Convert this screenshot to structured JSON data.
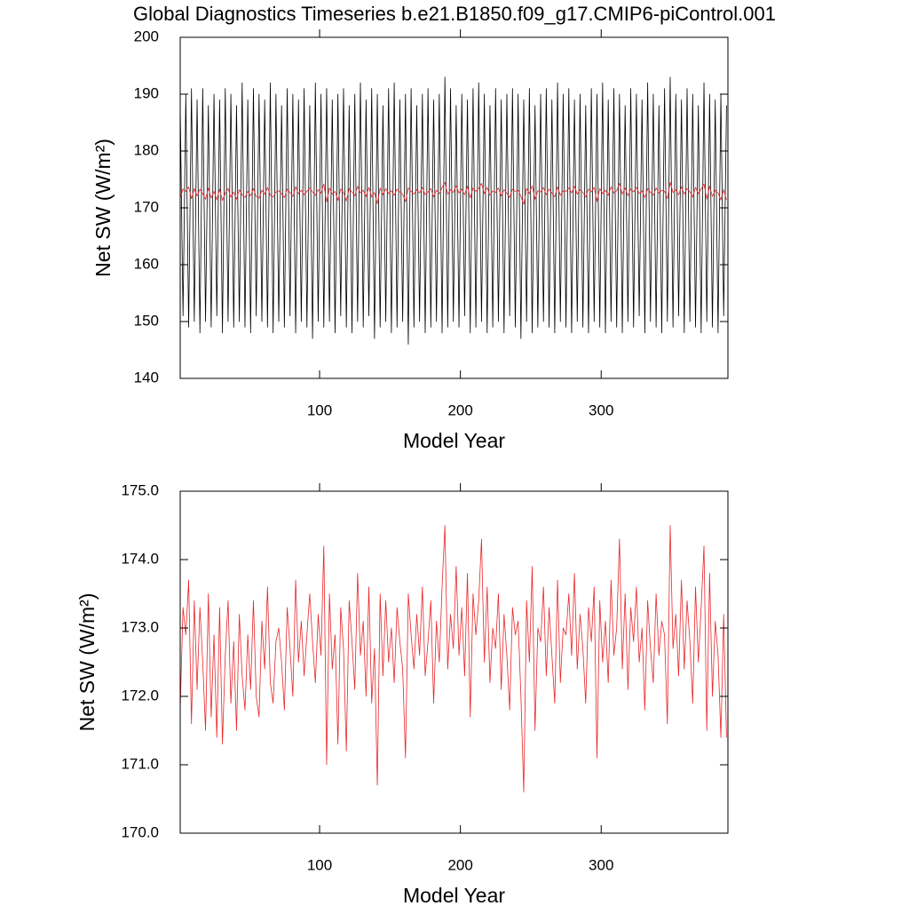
{
  "chart_data": [
    {
      "type": "line",
      "title": "Global Diagnostics Timeseries b.e21.B1850.f09_g17.CMIP6-piControl.001",
      "xlabel": "Model Year",
      "ylabel": "Net SW (W/m²)",
      "xlim": [
        1,
        390
      ],
      "ylim": [
        140,
        200
      ],
      "xticks": [
        100,
        200,
        300
      ],
      "yticks": [
        140,
        150,
        160,
        170,
        180,
        190,
        200
      ],
      "x": [
        1,
        3,
        5,
        7,
        9,
        11,
        13,
        15,
        17,
        19,
        21,
        23,
        25,
        27,
        29,
        31,
        33,
        35,
        37,
        39,
        41,
        43,
        45,
        47,
        49,
        51,
        53,
        55,
        57,
        59,
        61,
        63,
        65,
        67,
        69,
        71,
        73,
        75,
        77,
        79,
        81,
        83,
        85,
        87,
        89,
        91,
        93,
        95,
        97,
        99,
        101,
        103,
        105,
        107,
        109,
        111,
        113,
        115,
        117,
        119,
        121,
        123,
        125,
        127,
        129,
        131,
        133,
        135,
        137,
        139,
        141,
        143,
        145,
        147,
        149,
        151,
        153,
        155,
        157,
        159,
        161,
        163,
        165,
        167,
        169,
        171,
        173,
        175,
        177,
        179,
        181,
        183,
        185,
        187,
        189,
        191,
        193,
        195,
        197,
        199,
        201,
        203,
        205,
        207,
        209,
        211,
        213,
        215,
        217,
        219,
        221,
        223,
        225,
        227,
        229,
        231,
        233,
        235,
        237,
        239,
        241,
        243,
        245,
        247,
        249,
        251,
        253,
        255,
        257,
        259,
        261,
        263,
        265,
        267,
        269,
        271,
        273,
        275,
        277,
        279,
        281,
        283,
        285,
        287,
        289,
        291,
        293,
        295,
        297,
        299,
        301,
        303,
        305,
        307,
        309,
        311,
        313,
        315,
        317,
        319,
        321,
        323,
        325,
        327,
        329,
        331,
        333,
        335,
        337,
        339,
        341,
        343,
        345,
        347,
        349,
        351,
        353,
        355,
        357,
        359,
        361,
        363,
        365,
        367,
        369,
        371,
        373,
        375,
        377,
        379,
        381,
        383,
        385,
        387,
        389
      ],
      "series": [
        {
          "color": "#000000",
          "values": [
            188,
            151,
            190,
            149,
            191,
            150,
            189,
            148,
            191,
            150,
            188,
            149,
            190,
            151,
            189,
            148,
            191,
            150,
            190,
            149,
            188,
            150,
            192,
            149,
            189,
            148,
            191,
            151,
            190,
            150,
            189,
            149,
            192,
            148,
            190,
            150,
            188,
            149,
            191,
            151,
            190,
            148,
            189,
            150,
            191,
            149,
            188,
            147,
            192,
            150,
            190,
            149,
            191,
            150,
            189,
            148,
            190,
            151,
            191,
            149,
            188,
            148,
            190,
            150,
            192,
            149,
            189,
            151,
            191,
            147,
            190,
            149,
            188,
            150,
            191,
            148,
            192,
            149,
            189,
            150,
            190,
            146,
            191,
            149,
            188,
            150,
            190,
            148,
            191,
            149,
            189,
            150,
            190,
            148,
            193,
            149,
            191,
            150,
            188,
            149,
            190,
            151,
            189,
            148,
            191,
            149,
            192,
            150,
            190,
            148,
            188,
            149,
            191,
            150,
            189,
            148,
            190,
            151,
            191,
            149,
            190,
            147,
            189,
            150,
            191,
            148,
            188,
            149,
            190,
            150,
            191,
            149,
            189,
            148,
            192,
            150,
            190,
            149,
            191,
            148,
            189,
            150,
            190,
            149,
            188,
            148,
            191,
            150,
            190,
            149,
            192,
            148,
            189,
            150,
            191,
            149,
            190,
            148,
            188,
            150,
            191,
            149,
            190,
            151,
            189,
            148,
            192,
            150,
            190,
            149,
            188,
            148,
            191,
            150,
            193,
            149,
            190,
            151,
            189,
            148,
            191,
            150,
            190,
            149,
            188,
            148,
            192,
            150,
            190,
            149,
            189,
            148,
            190,
            151,
            188
          ]
        },
        {
          "color": "#e8262a",
          "values": [
            171.8,
            173.3,
            172.9,
            173.7,
            171.6,
            173.4,
            172.1,
            173.3,
            172.5,
            171.5,
            173.5,
            171.7,
            172.9,
            171.4,
            173.3,
            171.3,
            172.6,
            173.4,
            171.9,
            172.8,
            171.5,
            173.2,
            172.3,
            171.8,
            172.9,
            172.1,
            173.4,
            172.0,
            171.7,
            173.1,
            172.4,
            173.6,
            172.2,
            171.9,
            172.8,
            173.0,
            172.5,
            171.8,
            173.3,
            172.7,
            172.0,
            173.7,
            172.5,
            173.1,
            172.3,
            172.9,
            173.5,
            172.8,
            172.2,
            173.2,
            172.6,
            174.2,
            171.0,
            173.5,
            172.4,
            172.9,
            171.3,
            173.3,
            172.7,
            171.2,
            173.4,
            172.8,
            172.1,
            173.8,
            172.6,
            173.1,
            172.0,
            173.6,
            171.9,
            172.7,
            170.7,
            173.5,
            172.3,
            173.4,
            172.5,
            173.0,
            172.2,
            173.3,
            172.8,
            172.4,
            171.1,
            173.5,
            172.9,
            172.4,
            173.2,
            172.6,
            173.6,
            172.3,
            172.8,
            173.4,
            171.9,
            173.1,
            172.5,
            173.6,
            174.5,
            172.4,
            173.2,
            172.7,
            173.9,
            172.6,
            173.3,
            172.3,
            173.8,
            171.7,
            173.5,
            172.9,
            173.4,
            174.3,
            172.5,
            173.6,
            172.2,
            173.0,
            172.7,
            173.5,
            172.1,
            173.2,
            172.6,
            171.8,
            173.3,
            172.9,
            173.1,
            172.0,
            170.6,
            173.4,
            172.5,
            173.9,
            171.5,
            173.0,
            172.8,
            173.6,
            172.3,
            173.3,
            172.6,
            171.9,
            173.7,
            172.2,
            173.0,
            172.9,
            173.5,
            172.6,
            173.8,
            172.4,
            173.2,
            172.7,
            171.9,
            173.3,
            172.8,
            173.6,
            171.1,
            173.4,
            172.5,
            173.1,
            172.2,
            173.7,
            172.6,
            173.0,
            174.3,
            172.4,
            173.5,
            172.1,
            173.3,
            172.8,
            173.6,
            172.5,
            173.0,
            171.8,
            173.4,
            172.7,
            172.2,
            173.5,
            172.6,
            173.1,
            172.9,
            171.6,
            174.5,
            172.7,
            173.2,
            172.3,
            173.7,
            172.4,
            173.4,
            172.8,
            171.9,
            173.6,
            172.5,
            173.3,
            174.2,
            171.5,
            173.8,
            172.0,
            173.1,
            172.6,
            171.4,
            173.2,
            171.4
          ]
        }
      ]
    },
    {
      "type": "line",
      "xlabel": "Model Year",
      "ylabel": "Net SW (W/m²)",
      "xlim": [
        1,
        390
      ],
      "ylim": [
        170,
        175
      ],
      "xticks": [
        100,
        200,
        300
      ],
      "yticks": [
        {
          "value": 170,
          "label": "170.0"
        },
        {
          "value": 171,
          "label": "171.0"
        },
        {
          "value": 172,
          "label": "172.0"
        },
        {
          "value": 173,
          "label": "173.0"
        },
        {
          "value": 174,
          "label": "174.0"
        },
        {
          "value": 175,
          "label": "175.0"
        }
      ]
    }
  ]
}
